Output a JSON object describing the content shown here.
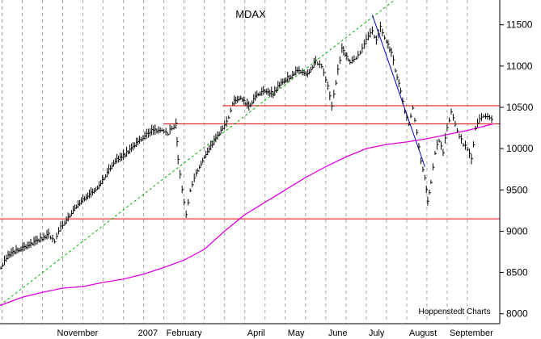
{
  "chart_data": {
    "type": "line",
    "subtype": "ohlc-bar",
    "title": "MDAX",
    "credit": "Hoppenstedt Charts",
    "xlabel": "",
    "ylabel": "",
    "ylim": [
      7880,
      11800
    ],
    "y_ticks": [
      8000,
      8500,
      9000,
      9500,
      10000,
      10500,
      11000,
      11500
    ],
    "y_axis_position": "right",
    "grid": {
      "vertical": "dashed",
      "horizontal": "none"
    },
    "x_month_labels": [
      {
        "label": "November",
        "index": 0.3
      },
      {
        "label": "2007",
        "index": 2.3
      },
      {
        "label": "February",
        "index": 3.0
      },
      {
        "label": "April",
        "index": 5.0
      },
      {
        "label": "May",
        "index": 6.0
      },
      {
        "label": "June",
        "index": 7.0
      },
      {
        "label": "July",
        "index": 8.0
      },
      {
        "label": "August",
        "index": 9.0
      },
      {
        "label": "September",
        "index": 10.0
      }
    ],
    "x_gridlines": [
      -1.0,
      -0.5,
      0,
      0.5,
      1.0,
      1.5,
      2.0,
      2.5,
      3.0,
      3.5,
      4.0,
      4.5,
      5.0,
      5.5,
      6.0,
      6.5,
      7.0,
      7.5,
      8.0,
      8.5,
      9.0,
      9.5,
      10.0,
      10.5
    ],
    "xlim": [
      -1.05,
      11.3
    ],
    "price_series": {
      "name": "MDAX",
      "color": "#000000",
      "points": [
        [
          -1.03,
          8560
        ],
        [
          -0.85,
          8700
        ],
        [
          -0.65,
          8760
        ],
        [
          -0.45,
          8800
        ],
        [
          -0.25,
          8850
        ],
        [
          -0.05,
          8900
        ],
        [
          0.15,
          8950
        ],
        [
          0.3,
          8880
        ],
        [
          0.4,
          9000
        ],
        [
          0.55,
          9100
        ],
        [
          0.8,
          9280
        ],
        [
          1.0,
          9380
        ],
        [
          1.2,
          9450
        ],
        [
          1.4,
          9550
        ],
        [
          1.6,
          9700
        ],
        [
          1.8,
          9850
        ],
        [
          2.0,
          9900
        ],
        [
          2.2,
          10000
        ],
        [
          2.4,
          10100
        ],
        [
          2.7,
          10200
        ],
        [
          2.95,
          10230
        ],
        [
          3.1,
          10180
        ],
        [
          3.2,
          10250
        ],
        [
          3.3,
          10280
        ],
        [
          3.35,
          9850
        ],
        [
          3.45,
          9500
        ],
        [
          3.55,
          9200
        ],
        [
          3.65,
          9500
        ],
        [
          3.8,
          9700
        ],
        [
          4.0,
          9900
        ],
        [
          4.2,
          10050
        ],
        [
          4.45,
          10250
        ],
        [
          4.55,
          10300
        ],
        [
          4.7,
          10550
        ],
        [
          4.9,
          10620
        ],
        [
          5.1,
          10500
        ],
        [
          5.3,
          10650
        ],
        [
          5.5,
          10700
        ],
        [
          5.7,
          10650
        ],
        [
          5.9,
          10800
        ],
        [
          6.1,
          10850
        ],
        [
          6.3,
          10950
        ],
        [
          6.55,
          10900
        ],
        [
          6.75,
          11050
        ],
        [
          6.9,
          11000
        ],
        [
          7.05,
          10750
        ],
        [
          7.15,
          10500
        ],
        [
          7.25,
          10800
        ],
        [
          7.4,
          11200
        ],
        [
          7.6,
          11050
        ],
        [
          7.75,
          11100
        ],
        [
          7.9,
          11200
        ],
        [
          8.05,
          11350
        ],
        [
          8.15,
          11420
        ],
        [
          8.25,
          11300
        ],
        [
          8.35,
          11450
        ],
        [
          8.5,
          11300
        ],
        [
          8.62,
          11150
        ],
        [
          8.72,
          10950
        ],
        [
          8.85,
          10700
        ],
        [
          8.95,
          10450
        ],
        [
          9.05,
          10300
        ],
        [
          9.15,
          10500
        ],
        [
          9.25,
          10200
        ],
        [
          9.35,
          9850
        ],
        [
          9.45,
          9650
        ],
        [
          9.52,
          9350
        ],
        [
          9.6,
          9600
        ],
        [
          9.7,
          9950
        ],
        [
          9.8,
          10100
        ],
        [
          9.9,
          9950
        ],
        [
          10.0,
          10250
        ],
        [
          10.1,
          10450
        ],
        [
          10.2,
          10300
        ],
        [
          10.3,
          10150
        ],
        [
          10.4,
          10050
        ],
        [
          10.5,
          10000
        ],
        [
          10.6,
          9850
        ],
        [
          10.7,
          10250
        ],
        [
          10.8,
          10350
        ],
        [
          10.9,
          10400
        ],
        [
          11.05,
          10380
        ],
        [
          11.15,
          10320
        ]
      ]
    },
    "moving_average": {
      "name": "",
      "color": "#e100e1",
      "points": [
        [
          -1.05,
          8100
        ],
        [
          -0.5,
          8200
        ],
        [
          0,
          8260
        ],
        [
          0.5,
          8310
        ],
        [
          1.0,
          8330
        ],
        [
          1.5,
          8380
        ],
        [
          2.0,
          8420
        ],
        [
          2.5,
          8480
        ],
        [
          3.0,
          8560
        ],
        [
          3.5,
          8650
        ],
        [
          4.0,
          8780
        ],
        [
          4.5,
          9000
        ],
        [
          5.0,
          9200
        ],
        [
          5.5,
          9350
        ],
        [
          6.0,
          9500
        ],
        [
          6.5,
          9650
        ],
        [
          7.0,
          9780
        ],
        [
          7.5,
          9900
        ],
        [
          8.0,
          10000
        ],
        [
          8.5,
          10050
        ],
        [
          9.0,
          10080
        ],
        [
          9.5,
          10120
        ],
        [
          10.0,
          10170
        ],
        [
          10.5,
          10220
        ],
        [
          11.15,
          10300
        ]
      ]
    },
    "horizontal_lines": [
      {
        "y": 9150,
        "from": -1.05,
        "to": 11.3,
        "color": "#e00000"
      },
      {
        "y": 10300,
        "from": 3.0,
        "to": 11.3,
        "color": "#e00000"
      },
      {
        "y": 10520,
        "from": 4.45,
        "to": 11.3,
        "color": "#e00000"
      }
    ],
    "trend_lines": [
      {
        "from": [
          -1.05,
          8100
        ],
        "to": [
          8.7,
          11800
        ],
        "color": "#00b000",
        "style": "dashed"
      },
      {
        "from": [
          8.15,
          11620
        ],
        "to": [
          9.45,
          9780
        ],
        "color": "#0000c8",
        "style": "solid"
      }
    ]
  }
}
